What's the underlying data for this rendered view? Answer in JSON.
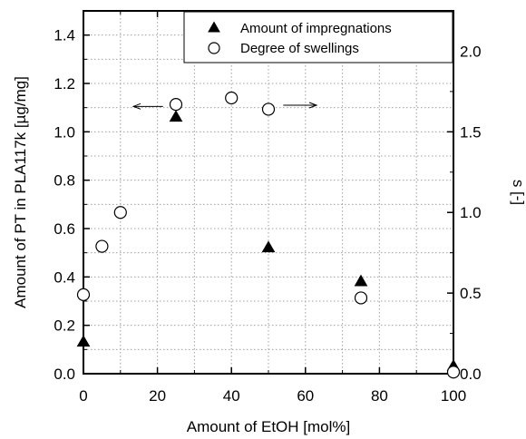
{
  "chart_data": {
    "type": "scatter",
    "title": "",
    "xlabel": "Amount of EtOH [mol%]",
    "ylabel_left": "Amount of PT in PLA117k [µg/mg]",
    "ylabel_right": "s [-]",
    "xlim": [
      0,
      100
    ],
    "ylim_left": [
      0,
      1.5
    ],
    "ylim_right": [
      0,
      2.25
    ],
    "x_ticks": [
      0,
      20,
      40,
      60,
      80,
      100
    ],
    "x_tick_labels": [
      "0",
      "20",
      "40",
      "60",
      "80",
      "100"
    ],
    "y_left_ticks": [
      0.0,
      0.2,
      0.4,
      0.6,
      0.8,
      1.0,
      1.2,
      1.4
    ],
    "y_left_tick_labels": [
      "0.0",
      "0.2",
      "0.4",
      "0.6",
      "0.8",
      "1.0",
      "1.2",
      "1.4"
    ],
    "y_right_ticks": [
      0.0,
      0.5,
      1.0,
      1.5,
      2.0
    ],
    "y_right_tick_labels": [
      "0.0",
      "0.5",
      "1.0",
      "1.5",
      "2.0"
    ],
    "grid": true,
    "legend_position": "top-right",
    "series": [
      {
        "name": "Amount of impregnations",
        "axis": "left",
        "marker": "filled-triangle",
        "points": [
          {
            "x": 0,
            "y": 0.13
          },
          {
            "x": 25,
            "y": 1.06
          },
          {
            "x": 50,
            "y": 0.52
          },
          {
            "x": 75,
            "y": 0.38
          },
          {
            "x": 100,
            "y": 0.03
          }
        ]
      },
      {
        "name": "Degree of swellings",
        "axis": "right",
        "marker": "open-circle",
        "points": [
          {
            "x": 0,
            "y": 0.49
          },
          {
            "x": 5,
            "y": 0.79
          },
          {
            "x": 10,
            "y": 1.0
          },
          {
            "x": 25,
            "y": 1.67
          },
          {
            "x": 40,
            "y": 1.71
          },
          {
            "x": 50,
            "y": 1.64
          },
          {
            "x": 75,
            "y": 0.47
          },
          {
            "x": 100,
            "y": 0.01
          }
        ]
      }
    ],
    "annotations": [
      {
        "type": "arrow",
        "direction": "left",
        "axis": "left",
        "x_from": 21.5,
        "x_to": 13.5,
        "y": 1.105
      },
      {
        "type": "arrow",
        "direction": "right",
        "axis": "left",
        "x_from": 54,
        "x_to": 63,
        "y": 1.11
      }
    ]
  }
}
